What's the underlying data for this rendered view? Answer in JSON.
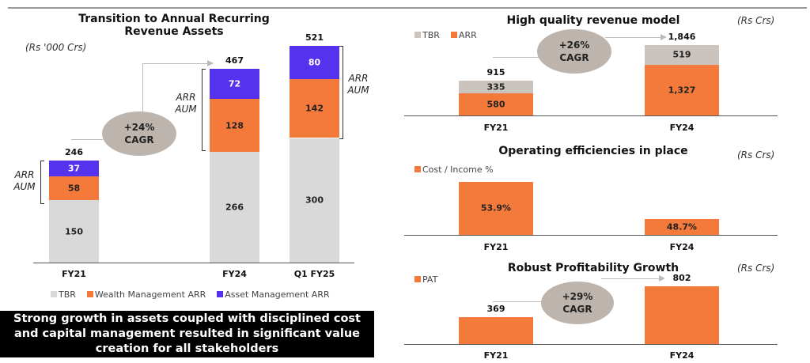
{
  "colors": {
    "tbr_left": "#d9d9d9",
    "tbr_right": "#cbc3bd",
    "orange": "#f47a3c",
    "purple": "#5533ee",
    "ellipse": "#bdb4ad"
  },
  "message": "Strong growth in assets coupled with disciplined cost and capital management resulted in significant value creation for all stakeholders",
  "chart_data": [
    {
      "type": "bar",
      "stacked": true,
      "title": "Transition to Annual Recurring Revenue Assets",
      "unit": "(Rs '000 Crs)",
      "categories": [
        "FY21",
        "FY24",
        "Q1 FY25"
      ],
      "series": [
        {
          "name": "TBR",
          "values": [
            150,
            266,
            300
          ]
        },
        {
          "name": "Wealth Management ARR",
          "values": [
            58,
            128,
            142
          ]
        },
        {
          "name": "Asset Management ARR",
          "values": [
            37,
            72,
            80
          ]
        }
      ],
      "totals": [
        "246",
        "467",
        "521"
      ],
      "segment_labels": [
        [
          "150",
          "58",
          "37"
        ],
        [
          "266",
          "128",
          "72"
        ],
        [
          "300",
          "142",
          "80"
        ]
      ],
      "bracket_label": "ARR AUM",
      "cagr": "+24% CAGR",
      "legend": "bottom"
    },
    {
      "type": "bar",
      "stacked": true,
      "title": "High quality revenue model",
      "unit": "(Rs Crs)",
      "categories": [
        "FY21",
        "FY24"
      ],
      "series": [
        {
          "name": "ARR",
          "values": [
            580,
            1327
          ]
        },
        {
          "name": "TBR",
          "values": [
            335,
            519
          ]
        }
      ],
      "totals": [
        "915",
        "1,846"
      ],
      "segment_labels": [
        [
          "580",
          "335"
        ],
        [
          "1,327",
          "519"
        ]
      ],
      "cagr": "+26% CAGR",
      "legend": "top-left",
      "legend_entries": [
        "TBR",
        "ARR"
      ]
    },
    {
      "type": "bar",
      "title": "Operating efficiencies in place",
      "unit": "(Rs Crs)",
      "categories": [
        "FY21",
        "FY24"
      ],
      "series": [
        {
          "name": "Cost / Income %",
          "values": [
            53.9,
            48.7
          ]
        }
      ],
      "data_labels": [
        "53.9%",
        "48.7%"
      ],
      "ylim": [
        46.5,
        60
      ],
      "legend": "top-left"
    },
    {
      "type": "bar",
      "title": "Robust Profitability Growth",
      "unit": "(Rs Crs)",
      "categories": [
        "FY21",
        "FY24"
      ],
      "series": [
        {
          "name": "PAT",
          "values": [
            369,
            802
          ]
        }
      ],
      "data_labels": [
        "369",
        "802"
      ],
      "cagr": "+29% CAGR",
      "legend": "top-left"
    }
  ]
}
